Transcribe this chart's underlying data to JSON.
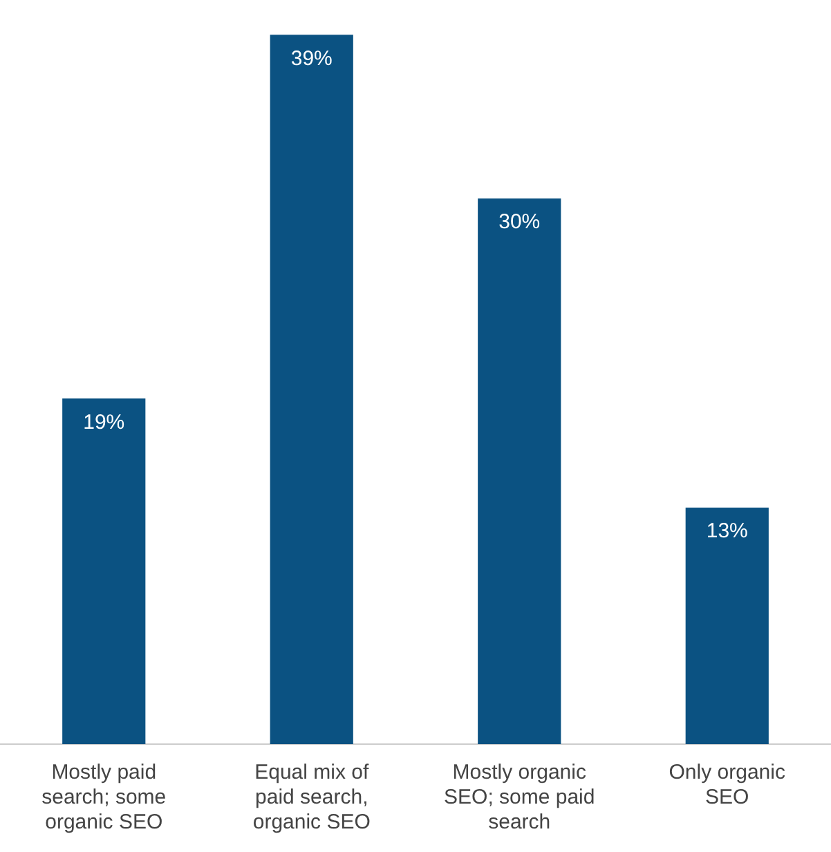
{
  "chart_data": {
    "type": "bar",
    "categories": [
      "Mostly paid search; some organic SEO",
      "Equal mix of paid search, organic SEO",
      "Mostly organic SEO; some paid search",
      "Only organic SEO"
    ],
    "values": [
      19,
      39,
      30,
      13
    ],
    "value_labels": [
      "19%",
      "39%",
      "30%",
      "13%"
    ],
    "color": "#0b5282",
    "grid": false,
    "legend": false
  }
}
